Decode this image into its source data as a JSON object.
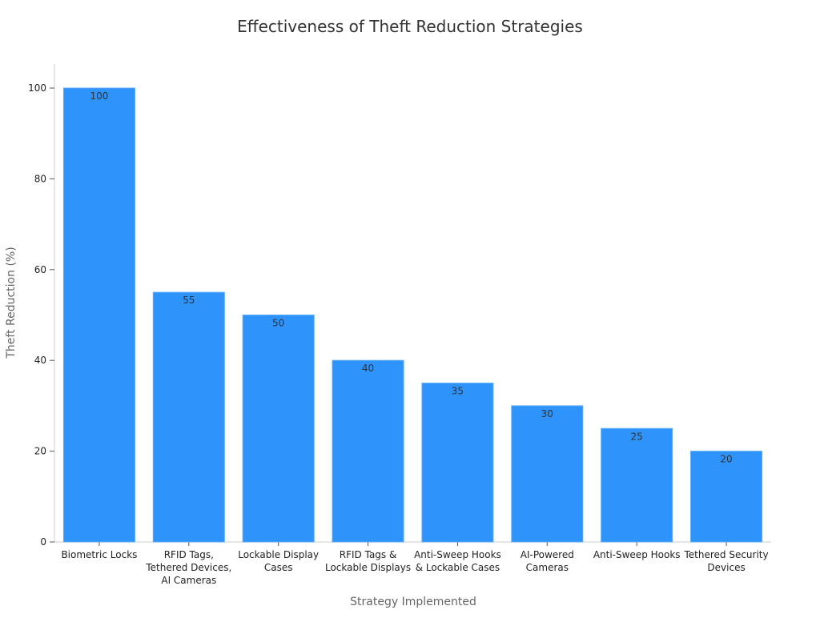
{
  "chart_data": {
    "type": "bar",
    "title": "Effectiveness of Theft Reduction Strategies",
    "xlabel": "Strategy Implemented",
    "ylabel": "Theft Reduction (%)",
    "ylim": [
      0,
      105
    ],
    "yticks": [
      0,
      20,
      40,
      60,
      80,
      100
    ],
    "grid": false,
    "categories": [
      [
        "Biometric Locks"
      ],
      [
        "RFID Tags,",
        "Tethered Devices,",
        "AI Cameras"
      ],
      [
        "Lockable Display",
        "Cases"
      ],
      [
        "RFID Tags &",
        "Lockable Displays"
      ],
      [
        "Anti-Sweep Hooks",
        "& Lockable Cases"
      ],
      [
        "AI-Powered",
        "Cameras"
      ],
      [
        "Anti-Sweep Hooks"
      ],
      [
        "Tethered Security",
        "Devices"
      ]
    ],
    "values": [
      100,
      55,
      50,
      40,
      35,
      30,
      25,
      20
    ],
    "bar_color": "#2e93fa",
    "bar_edge_color": "#5aabf9"
  }
}
